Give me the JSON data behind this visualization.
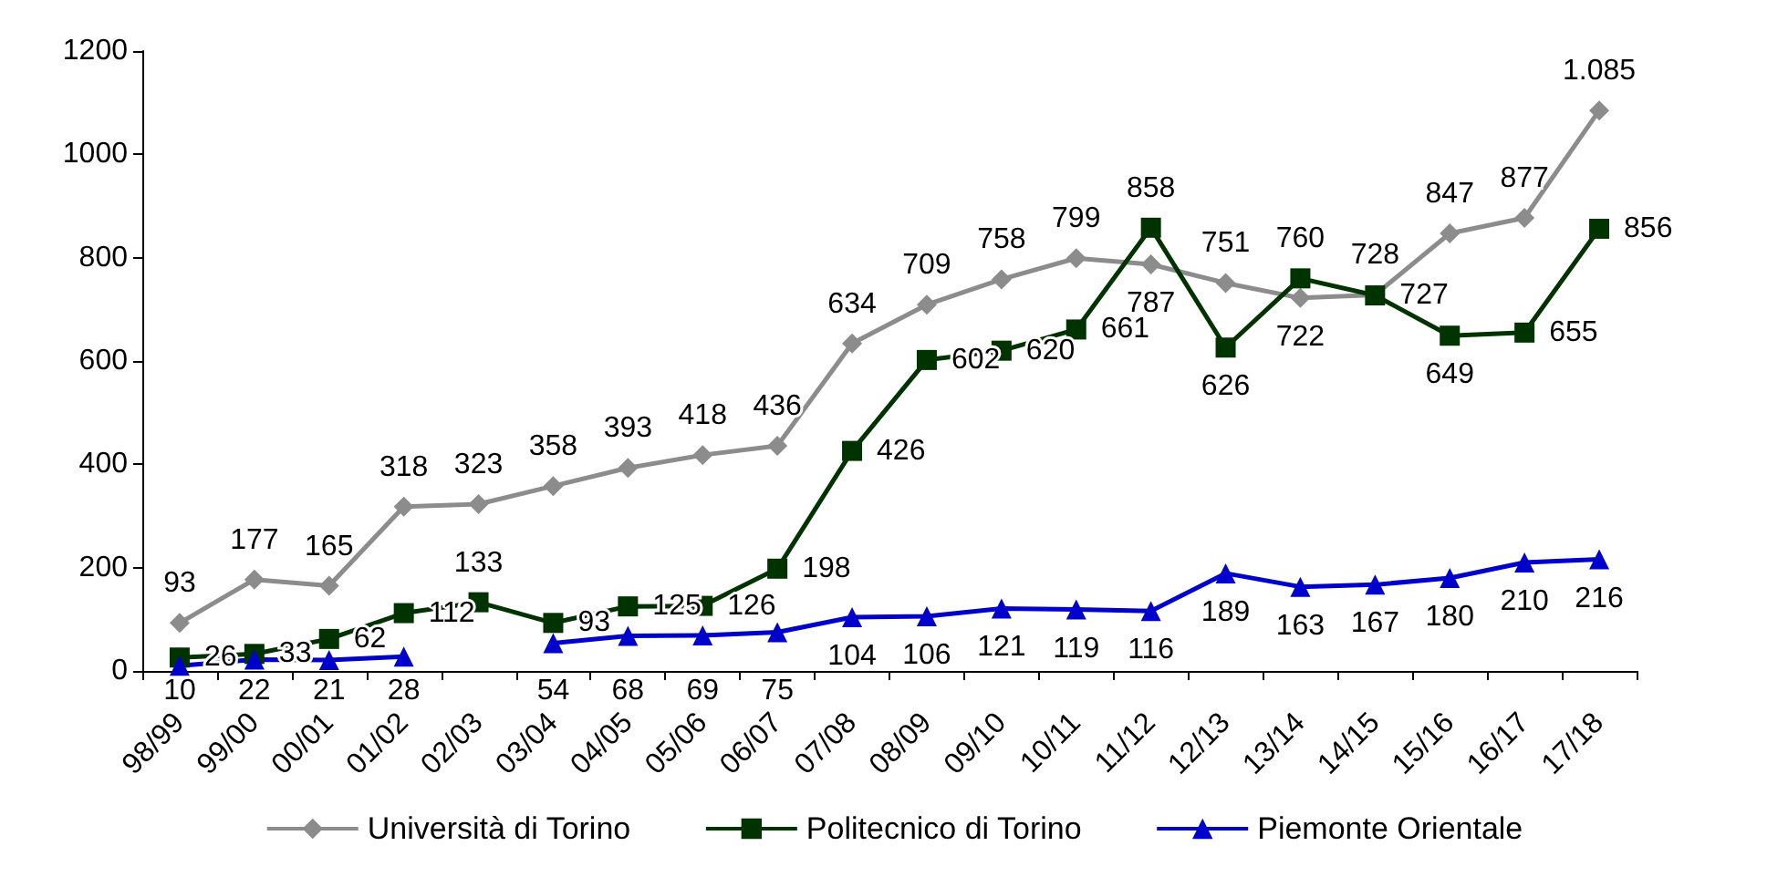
{
  "chart_data": {
    "type": "line",
    "categories": [
      "98/99",
      "99/00",
      "00/01",
      "01/02",
      "02/03",
      "03/04",
      "04/05",
      "05/06",
      "06/07",
      "07/08",
      "08/09",
      "09/10",
      "10/11",
      "11/12",
      "12/13",
      "13/14",
      "14/15",
      "15/16",
      "16/17",
      "17/18"
    ],
    "series": [
      {
        "name": "Università di Torino",
        "color": "#8c8c8c",
        "marker": "diamond",
        "values": [
          93,
          177,
          165,
          318,
          323,
          358,
          393,
          418,
          436,
          634,
          709,
          758,
          799,
          787,
          751,
          722,
          728,
          847,
          877,
          1085
        ],
        "value_labels": [
          "93",
          "177",
          "165",
          "318",
          "323",
          "358",
          "393",
          "418",
          "436",
          "634",
          "709",
          "758",
          "799",
          "787",
          "751",
          "722",
          "728",
          "847",
          "877",
          "1.085"
        ]
      },
      {
        "name": "Politecnico di Torino",
        "color": "#003300",
        "marker": "square",
        "values": [
          26,
          33,
          62,
          112,
          133,
          93,
          125,
          126,
          198,
          426,
          602,
          620,
          661,
          858,
          626,
          760,
          727,
          649,
          655,
          856
        ],
        "value_labels": [
          "26",
          "33",
          "62",
          "112",
          "133",
          "93",
          "125",
          "126",
          "198",
          "426",
          "602",
          "620",
          "661",
          "858",
          "626",
          "760",
          "727",
          "649",
          "655",
          "856"
        ]
      },
      {
        "name": "Piemonte Orientale",
        "color": "#0000cc",
        "marker": "triangle",
        "values": [
          10,
          22,
          21,
          28,
          null,
          54,
          68,
          69,
          75,
          104,
          106,
          121,
          119,
          116,
          189,
          163,
          167,
          180,
          210,
          216
        ],
        "value_labels": [
          "10",
          "22",
          "21",
          "28",
          null,
          "54",
          "68",
          "69",
          "75",
          "104",
          "106",
          "121",
          "119",
          "116",
          "189",
          "163",
          "167",
          "180",
          "210",
          "216"
        ]
      }
    ],
    "ylim": [
      0,
      1200
    ],
    "yticks": [
      0,
      200,
      400,
      600,
      800,
      1000,
      1200
    ],
    "grid": false,
    "legend": "bottom"
  }
}
